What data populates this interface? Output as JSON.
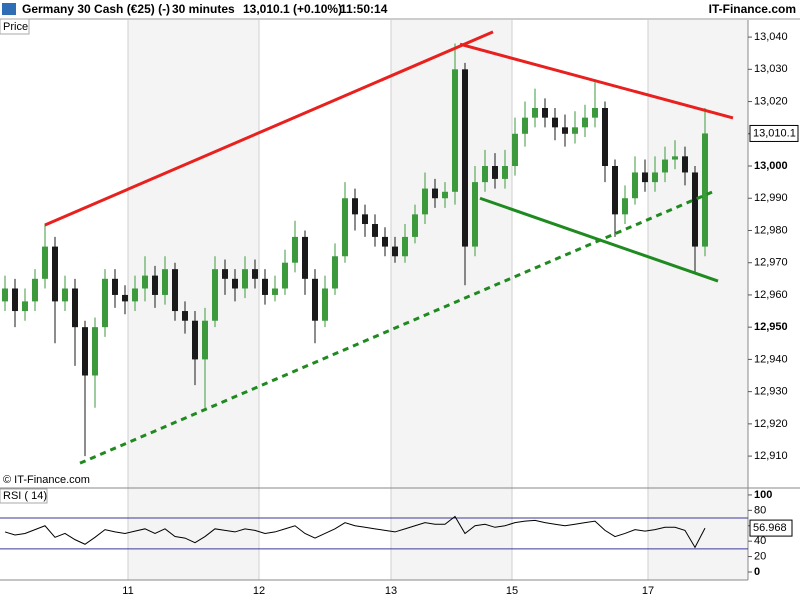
{
  "header": {
    "instrument": "Germany 30 Cash (€25) (-)",
    "interval": "30 minutes",
    "quote": "13,010.1 (+0.10%)",
    "time": "11:50:14",
    "brand": "IT-Finance.com"
  },
  "chart_data": {
    "type": "candlestick",
    "panel_label": "Price",
    "copyright": "© IT-Finance.com",
    "up_color": "#3c9a3c",
    "down_color": "#1a1a1a",
    "xlim": [
      -0.5,
      74.3
    ],
    "xticks": [
      {
        "value": 12.3,
        "label": "11"
      },
      {
        "value": 25.4,
        "label": "12"
      },
      {
        "value": 38.6,
        "label": "13"
      },
      {
        "value": 50.7,
        "label": "15"
      },
      {
        "value": 64.3,
        "label": "17"
      }
    ],
    "ylim": [
      12900.1,
      13045.3
    ],
    "yticks": [
      {
        "value": 12910,
        "label": "12,910"
      },
      {
        "value": 12920,
        "label": "12,920"
      },
      {
        "value": 12930,
        "label": "12,930"
      },
      {
        "value": 12940,
        "label": "12,940"
      },
      {
        "value": 12950,
        "label": "12,950"
      },
      {
        "value": 12960,
        "label": "12,960"
      },
      {
        "value": 12970,
        "label": "12,970"
      },
      {
        "value": 12980,
        "label": "12,980"
      },
      {
        "value": 12990,
        "label": "12,990"
      },
      {
        "value": 13000,
        "label": "13,000"
      },
      {
        "value": 13010,
        "label": "13,010"
      },
      {
        "value": 13020,
        "label": "13,020"
      },
      {
        "value": 13030,
        "label": "13,030"
      },
      {
        "value": 13040,
        "label": "13,040"
      }
    ],
    "bold_ticks": [
      4,
      9
    ],
    "open": [
      12958,
      12962,
      12955,
      12958,
      12965,
      12975,
      12958,
      12962,
      12950,
      12935,
      12950,
      12965,
      12960,
      12958,
      12962,
      12966,
      12960,
      12968,
      12955,
      12952,
      12940,
      12952,
      12968,
      12965,
      12962,
      12968,
      12965,
      12960,
      12962,
      12970,
      12978,
      12965,
      12952,
      12962,
      12972,
      12990,
      12985,
      12982,
      12978,
      12975,
      12972,
      12978,
      12985,
      12993,
      12990,
      12992,
      13030,
      12975,
      12995,
      13000,
      12996,
      13000,
      13010,
      13015,
      13018,
      13015,
      13012,
      13010,
      13012,
      13015,
      13018,
      13000,
      12985,
      12990,
      12998,
      12995,
      12998,
      13002,
      13003,
      12998,
      12975
    ],
    "high": [
      12966,
      12965,
      12962,
      12968,
      12982,
      12978,
      12966,
      12965,
      12952,
      12953,
      12968,
      12968,
      12963,
      12966,
      12972,
      12969,
      12972,
      12970,
      12958,
      12955,
      12956,
      12972,
      12971,
      12968,
      12972,
      12971,
      12968,
      12966,
      12974,
      12983,
      12980,
      12968,
      12966,
      12976,
      12995,
      12993,
      12988,
      12985,
      12981,
      12978,
      12982,
      12988,
      12998,
      12996,
      12995,
      13038,
      13032,
      13000,
      13005,
      13004,
      13005,
      13015,
      13020,
      13024,
      13021,
      13018,
      13016,
      13017,
      13019,
      13026,
      13020,
      13002,
      12994,
      13003,
      13002,
      13003,
      13006,
      13008,
      13006,
      13000,
      13018
    ],
    "low": [
      12955,
      12950,
      12952,
      12955,
      12962,
      12945,
      12955,
      12938,
      12910,
      12925,
      12947,
      12956,
      12954,
      12955,
      12958,
      12956,
      12957,
      12952,
      12948,
      12932,
      12925,
      12950,
      12960,
      12958,
      12959,
      12962,
      12957,
      12958,
      12960,
      12967,
      12960,
      12945,
      12950,
      12960,
      12970,
      12980,
      12978,
      12975,
      12972,
      12970,
      12970,
      12976,
      12982,
      12987,
      12987,
      12988,
      12963,
      12972,
      12992,
      12993,
      12993,
      12997,
      13006,
      13012,
      13012,
      13008,
      13006,
      13007,
      13009,
      13012,
      12995,
      12978,
      12982,
      12988,
      12992,
      12992,
      12995,
      12999,
      12994,
      12967,
      12972
    ],
    "close": [
      12962,
      12955,
      12958,
      12965,
      12975,
      12958,
      12962,
      12950,
      12935,
      12950,
      12965,
      12960,
      12958,
      12962,
      12966,
      12960,
      12968,
      12955,
      12952,
      12940,
      12952,
      12968,
      12965,
      12962,
      12968,
      12965,
      12960,
      12962,
      12970,
      12978,
      12965,
      12952,
      12962,
      12972,
      12990,
      12985,
      12982,
      12978,
      12975,
      12972,
      12978,
      12985,
      12993,
      12990,
      12992,
      13030,
      12975,
      12995,
      13000,
      12996,
      13000,
      13010,
      13015,
      13018,
      13015,
      13012,
      13010,
      13012,
      13015,
      13018,
      13000,
      12985,
      12990,
      12998,
      12995,
      12998,
      13002,
      13003,
      12998,
      12975,
      13010.1
    ],
    "price_tag": "13,010.1",
    "trendlines": [
      {
        "color": "#e8201e",
        "dashed": false,
        "x": [
          4,
          48.8
        ],
        "y": [
          12981.7,
          13041.6
        ]
      },
      {
        "color": "#e8201e",
        "dashed": false,
        "x": [
          45.5,
          72.8
        ],
        "y": [
          13037.8,
          13014.9
        ]
      },
      {
        "color": "#1f8a1f",
        "dashed": true,
        "x": [
          7.5,
          70.7
        ],
        "y": [
          12907.8,
          12991.9
        ]
      },
      {
        "color": "#1f8a1f",
        "dashed": false,
        "x": [
          47.5,
          71.3
        ],
        "y": [
          12990,
          12964.3
        ]
      }
    ],
    "rsi": {
      "label": "RSI ( 14)",
      "color": "#000000",
      "level_color": "#3a3a9a",
      "ylim": [
        -10.4,
        109
      ],
      "yticks": [
        0,
        20,
        40,
        60,
        80,
        100
      ],
      "levels": [
        70,
        30
      ],
      "values": [
        52,
        48,
        50,
        55,
        60,
        45,
        50,
        42,
        36,
        45,
        55,
        52,
        50,
        53,
        56,
        50,
        56,
        46,
        44,
        38,
        46,
        56,
        54,
        52,
        56,
        54,
        50,
        52,
        56,
        60,
        50,
        44,
        50,
        56,
        64,
        60,
        58,
        56,
        54,
        52,
        56,
        60,
        64,
        62,
        62,
        72,
        50,
        60,
        62,
        58,
        60,
        64,
        66,
        67,
        64,
        62,
        60,
        62,
        64,
        66,
        54,
        46,
        50,
        55,
        53,
        55,
        58,
        58,
        54,
        32,
        56.968
      ]
    }
  }
}
